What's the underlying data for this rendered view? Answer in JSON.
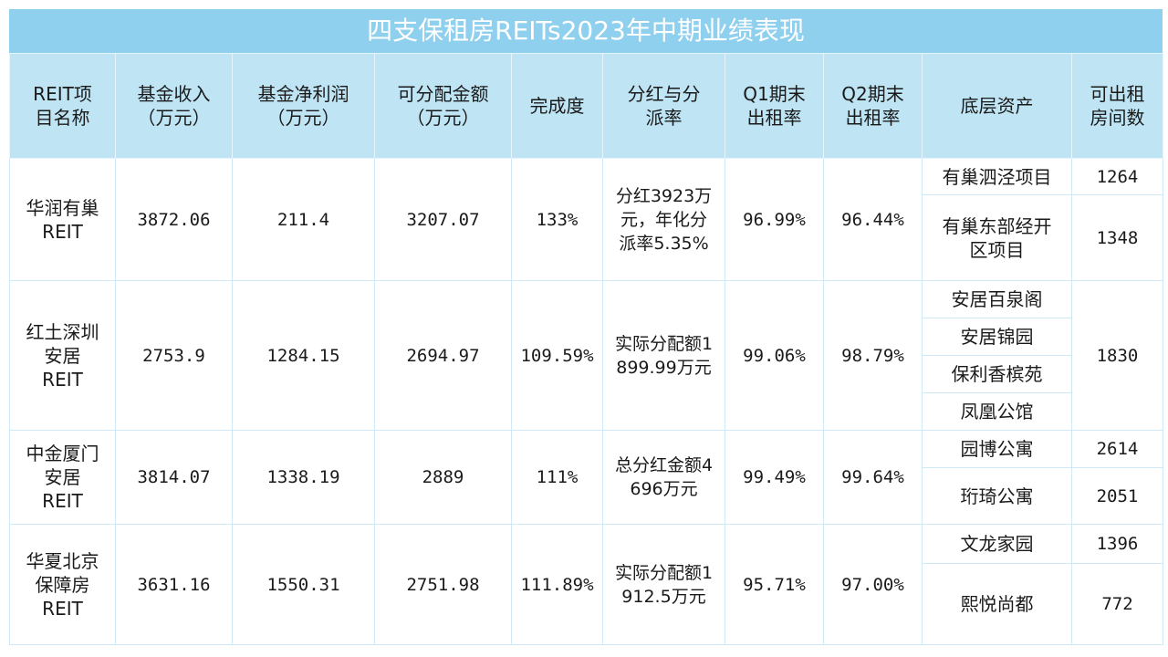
{
  "title": "四支保租房REITs2023年中期业绩表现",
  "headers": [
    "REIT项目名称",
    "基金收入（万元）",
    "基金净利润（万元）",
    "可分配金额（万元）",
    "完成度",
    "分红与分派率",
    "Q1期末出租率",
    "Q2期末出租率",
    "底层资产",
    "可出租房间数"
  ],
  "rows": [
    {
      "name": "华润有巢REIT",
      "income": "3872.06",
      "net_profit": "211.4",
      "distributable": "3207.07",
      "completion": "133%",
      "dividend": "分红3923万元，年化分派率5.35%",
      "q1": "96.99%",
      "q2": "96.44%",
      "assets": [
        {
          "name": "有巢泗泾项目",
          "rooms": "1264"
        },
        {
          "name": "有巢东部经开区项目",
          "rooms": "1348"
        }
      ]
    },
    {
      "name": "红土深圳安居REIT",
      "income": "2753.9",
      "net_profit": "1284.15",
      "distributable": "2694.97",
      "completion": "109.59%",
      "dividend": "实际分配额1899.99万元",
      "q1": "99.06%",
      "q2": "98.79%",
      "assets": [
        {
          "name": "安居百泉阁"
        },
        {
          "name": "安居锦园"
        },
        {
          "name": "保利香槟苑"
        },
        {
          "name": "凤凰公馆"
        }
      ],
      "rooms_total": "1830"
    },
    {
      "name": "中金厦门安居REIT",
      "income": "3814.07",
      "net_profit": "1338.19",
      "distributable": "2889",
      "completion": "111%",
      "dividend": "总分红金额4696万元",
      "q1": "99.49%",
      "q2": "99.64%",
      "assets": [
        {
          "name": "园博公寓",
          "rooms": "2614"
        },
        {
          "name": "珩琦公寓",
          "rooms": "2051"
        }
      ]
    },
    {
      "name": "华夏北京保障房REIT",
      "income": "3631.16",
      "net_profit": "1550.31",
      "distributable": "2751.98",
      "completion": "111.89%",
      "dividend": "实际分配额1912.5万元",
      "q1": "95.71%",
      "q2": "97.00%",
      "assets": [
        {
          "name": "文龙家园",
          "rooms": "1396"
        },
        {
          "name": "熙悦尚都",
          "rooms": "772"
        }
      ]
    }
  ]
}
